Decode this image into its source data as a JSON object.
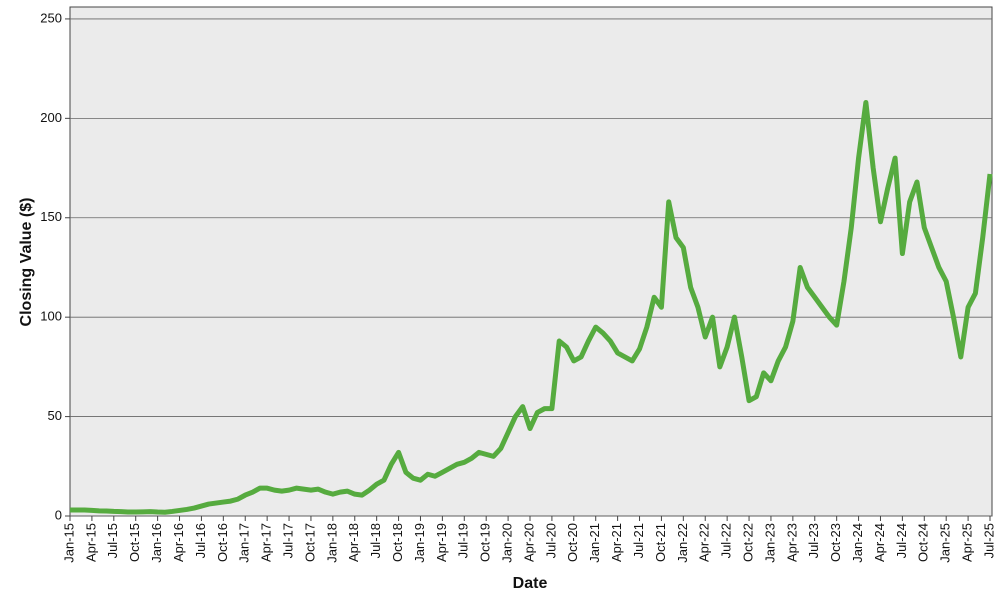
{
  "chart_data": {
    "type": "line",
    "y_label": "Closing Value ($)",
    "x_label": "Date",
    "color": "#56ab3f",
    "grid": true,
    "ylim": [
      0,
      256
    ],
    "yticks": [
      0,
      50,
      100,
      150,
      200,
      250
    ],
    "categories": [
      "Jan-15",
      "Feb-15",
      "Mar-15",
      "Apr-15",
      "May-15",
      "Jun-15",
      "Jul-15",
      "Aug-15",
      "Sep-15",
      "Oct-15",
      "Nov-15",
      "Dec-15",
      "Jan-16",
      "Feb-16",
      "Mar-16",
      "Apr-16",
      "May-16",
      "Jun-16",
      "Jul-16",
      "Aug-16",
      "Sep-16",
      "Oct-16",
      "Nov-16",
      "Dec-16",
      "Jan-17",
      "Feb-17",
      "Mar-17",
      "Apr-17",
      "May-17",
      "Jun-17",
      "Jul-17",
      "Aug-17",
      "Sep-17",
      "Oct-17",
      "Nov-17",
      "Dec-17",
      "Jan-18",
      "Feb-18",
      "Mar-18",
      "Apr-18",
      "May-18",
      "Jun-18",
      "Jul-18",
      "Aug-18",
      "Sep-18",
      "Oct-18",
      "Nov-18",
      "Dec-18",
      "Jan-19",
      "Feb-19",
      "Mar-19",
      "Apr-19",
      "May-19",
      "Jun-19",
      "Jul-19",
      "Aug-19",
      "Sep-19",
      "Oct-19",
      "Nov-19",
      "Dec-19",
      "Jan-20",
      "Feb-20",
      "Mar-20",
      "Apr-20",
      "May-20",
      "Jun-20",
      "Jul-20",
      "Aug-20",
      "Sep-20",
      "Oct-20",
      "Nov-20",
      "Dec-20",
      "Jan-21",
      "Feb-21",
      "Mar-21",
      "Apr-21",
      "May-21",
      "Jun-21",
      "Jul-21",
      "Aug-21",
      "Sep-21",
      "Oct-21",
      "Nov-21",
      "Dec-21",
      "Jan-22",
      "Feb-22",
      "Mar-22",
      "Apr-22",
      "May-22",
      "Jun-22",
      "Jul-22",
      "Aug-22",
      "Sep-22",
      "Oct-22",
      "Nov-22",
      "Dec-22",
      "Jan-23",
      "Feb-23",
      "Mar-23",
      "Apr-23",
      "May-23",
      "Jun-23",
      "Jul-23",
      "Aug-23",
      "Sep-23",
      "Oct-23",
      "Nov-23",
      "Dec-23",
      "Jan-24",
      "Feb-24",
      "Mar-24",
      "Apr-24",
      "May-24",
      "Jun-24",
      "Jul-24",
      "Aug-24",
      "Sep-24",
      "Oct-24",
      "Nov-24",
      "Dec-24",
      "Jan-25",
      "Feb-25",
      "Mar-25",
      "Apr-25",
      "May-25",
      "Jun-25",
      "Jul-25"
    ],
    "values": [
      3,
      3,
      3,
      2.8,
      2.6,
      2.5,
      2.3,
      2.2,
      2.0,
      2.0,
      2.1,
      2.2,
      2.0,
      1.9,
      2.3,
      2.8,
      3.3,
      4.0,
      5.0,
      6.0,
      6.5,
      7.0,
      7.5,
      8.5,
      10.5,
      12,
      14,
      14,
      13,
      12.5,
      13,
      14,
      13.5,
      13,
      13.5,
      12,
      11,
      12,
      12.5,
      11,
      10.5,
      13,
      16,
      18,
      26,
      32,
      22,
      19,
      18,
      21,
      20,
      22,
      24,
      26,
      27,
      29,
      32,
      31,
      30,
      34,
      42,
      50,
      55,
      44,
      52,
      54,
      54,
      88,
      85,
      78,
      80,
      88,
      95,
      92,
      88,
      82,
      80,
      78,
      84,
      95,
      110,
      105,
      158,
      140,
      135,
      115,
      105,
      90,
      100,
      75,
      85,
      100,
      80,
      58,
      60,
      72,
      68,
      78,
      85,
      98,
      125,
      115,
      110,
      105,
      100,
      96,
      118,
      145,
      180,
      208,
      175,
      148,
      165,
      180,
      132,
      158,
      168,
      145,
      135,
      125,
      118,
      100,
      80,
      105,
      112,
      140,
      172
    ],
    "xticks": [
      "Jan-15",
      "Apr-15",
      "Jul-15",
      "Oct-15",
      "Jan-16",
      "Apr-16",
      "Jul-16",
      "Oct-16",
      "Jan-17",
      "Apr-17",
      "Jul-17",
      "Oct-17",
      "Jan-18",
      "Apr-18",
      "Jul-18",
      "Oct-18",
      "Jan-19",
      "Apr-19",
      "Jul-19",
      "Oct-19",
      "Jan-20",
      "Apr-20",
      "Jul-20",
      "Oct-20",
      "Jan-21",
      "Apr-21",
      "Jul-21",
      "Oct-21",
      "Jan-22",
      "Apr-22",
      "Jul-22",
      "Oct-22",
      "Jan-23",
      "Apr-23",
      "Jul-23",
      "Oct-23",
      "Jan-24",
      "Apr-24",
      "Jul-24",
      "Oct-24",
      "Jan-25",
      "Apr-25",
      "Jul-25"
    ]
  }
}
